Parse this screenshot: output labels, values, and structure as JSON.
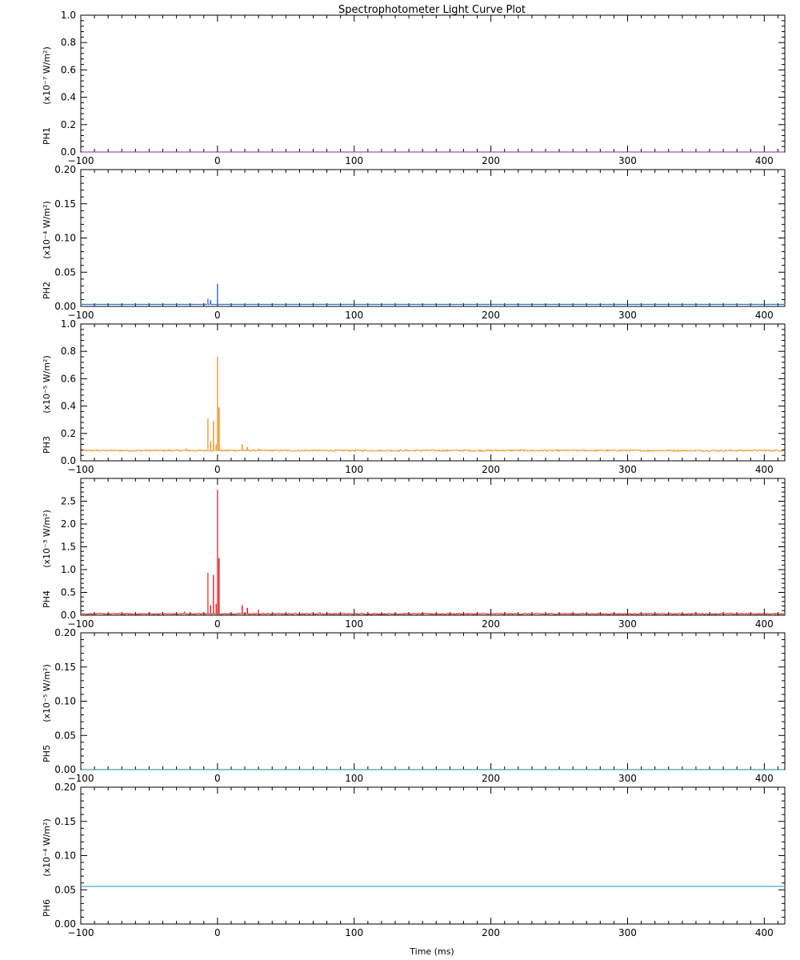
{
  "chart_data": {
    "type": "line",
    "title": "Spectrophotometer Light Curve Plot",
    "xlabel": "Time (ms)",
    "xlim": [
      -100,
      415
    ],
    "x_ticks": [
      -100,
      0,
      100,
      200,
      300,
      400
    ],
    "x_tick_labels": [
      "−100",
      "0",
      "100",
      "200",
      "300",
      "400"
    ],
    "panels": [
      {
        "name": "PH1",
        "unit_label": "(x10⁻⁷ W/m²)",
        "color": "#7b2fa6",
        "ylim": [
          0,
          1.0
        ],
        "y_ticks": [
          0,
          0.2,
          0.4,
          0.6,
          0.8,
          1.0
        ],
        "y_tick_labels": [
          "0.0",
          "0.2",
          "0.4",
          "0.6",
          "0.8",
          "1.0"
        ],
        "baseline": 0.0,
        "noise": 0.0,
        "peaks": []
      },
      {
        "name": "PH2",
        "unit_label": "(x10⁻⁴ W/m²)",
        "color": "#0a5ad8",
        "ylim": [
          0,
          0.2
        ],
        "y_ticks": [
          0,
          0.05,
          0.1,
          0.15,
          0.2
        ],
        "y_tick_labels": [
          "0.00",
          "0.05",
          "0.10",
          "0.15",
          "0.20"
        ],
        "baseline": 0.003,
        "noise": 0.0,
        "peaks": [
          {
            "t": -7,
            "value": 0.011
          },
          {
            "t": -5,
            "value": 0.009
          },
          {
            "t": 0,
            "value": 0.033
          }
        ]
      },
      {
        "name": "PH3",
        "unit_label": "(x10⁻⁵ W/m²)",
        "color": "#ef8a1a",
        "ylim": [
          0,
          1.0
        ],
        "y_ticks": [
          0,
          0.2,
          0.4,
          0.6,
          0.8,
          1.0
        ],
        "y_tick_labels": [
          "0.0",
          "0.2",
          "0.4",
          "0.6",
          "0.8",
          "1.0"
        ],
        "baseline": 0.075,
        "noise": 0.012,
        "peaks": [
          {
            "t": -23,
            "value": 0.09
          },
          {
            "t": -7,
            "value": 0.31
          },
          {
            "t": -5,
            "value": 0.14
          },
          {
            "t": -3,
            "value": 0.29
          },
          {
            "t": -1,
            "value": 0.12
          },
          {
            "t": 0,
            "value": 0.76
          },
          {
            "t": 1,
            "value": 0.39
          },
          {
            "t": 18,
            "value": 0.12
          },
          {
            "t": 22,
            "value": 0.1
          },
          {
            "t": 30,
            "value": 0.09
          }
        ]
      },
      {
        "name": "PH4",
        "unit_label": "(x10⁻³ W/m²)",
        "color": "#e01b1b",
        "ylim": [
          0,
          3.0
        ],
        "y_ticks": [
          0,
          0.5,
          1.0,
          1.5,
          2.0,
          2.5
        ],
        "y_tick_labels": [
          "0.0",
          "0.5",
          "1.0",
          "1.5",
          "2.0",
          "2.5"
        ],
        "baseline": 0.03,
        "noise": 0.025,
        "peaks": [
          {
            "t": -24,
            "value": 0.08
          },
          {
            "t": -7,
            "value": 0.93
          },
          {
            "t": -5,
            "value": 0.22
          },
          {
            "t": -3,
            "value": 0.88
          },
          {
            "t": -1,
            "value": 0.25
          },
          {
            "t": 0,
            "value": 2.75
          },
          {
            "t": 1,
            "value": 1.25
          },
          {
            "t": 18,
            "value": 0.22
          },
          {
            "t": 22,
            "value": 0.16
          },
          {
            "t": 30,
            "value": 0.12
          },
          {
            "t": 75,
            "value": 0.07
          }
        ]
      },
      {
        "name": "PH5",
        "unit_label": "(x10⁻⁵ W/m²)",
        "color": "#1a8a7a",
        "ylim": [
          0,
          0.2
        ],
        "y_ticks": [
          0,
          0.05,
          0.1,
          0.15,
          0.2
        ],
        "y_tick_labels": [
          "0.00",
          "0.05",
          "0.10",
          "0.15",
          "0.20"
        ],
        "baseline": 0.0,
        "noise": 0.0,
        "peaks": []
      },
      {
        "name": "PH6",
        "unit_label": "(x10⁻⁴ W/m²)",
        "color": "#1e90d8",
        "ylim": [
          0,
          0.2
        ],
        "y_ticks": [
          0,
          0.05,
          0.1,
          0.15,
          0.2
        ],
        "y_tick_labels": [
          "0.00",
          "0.05",
          "0.10",
          "0.15",
          "0.20"
        ],
        "baseline": 0.055,
        "noise": 0.0,
        "peaks": []
      }
    ]
  }
}
